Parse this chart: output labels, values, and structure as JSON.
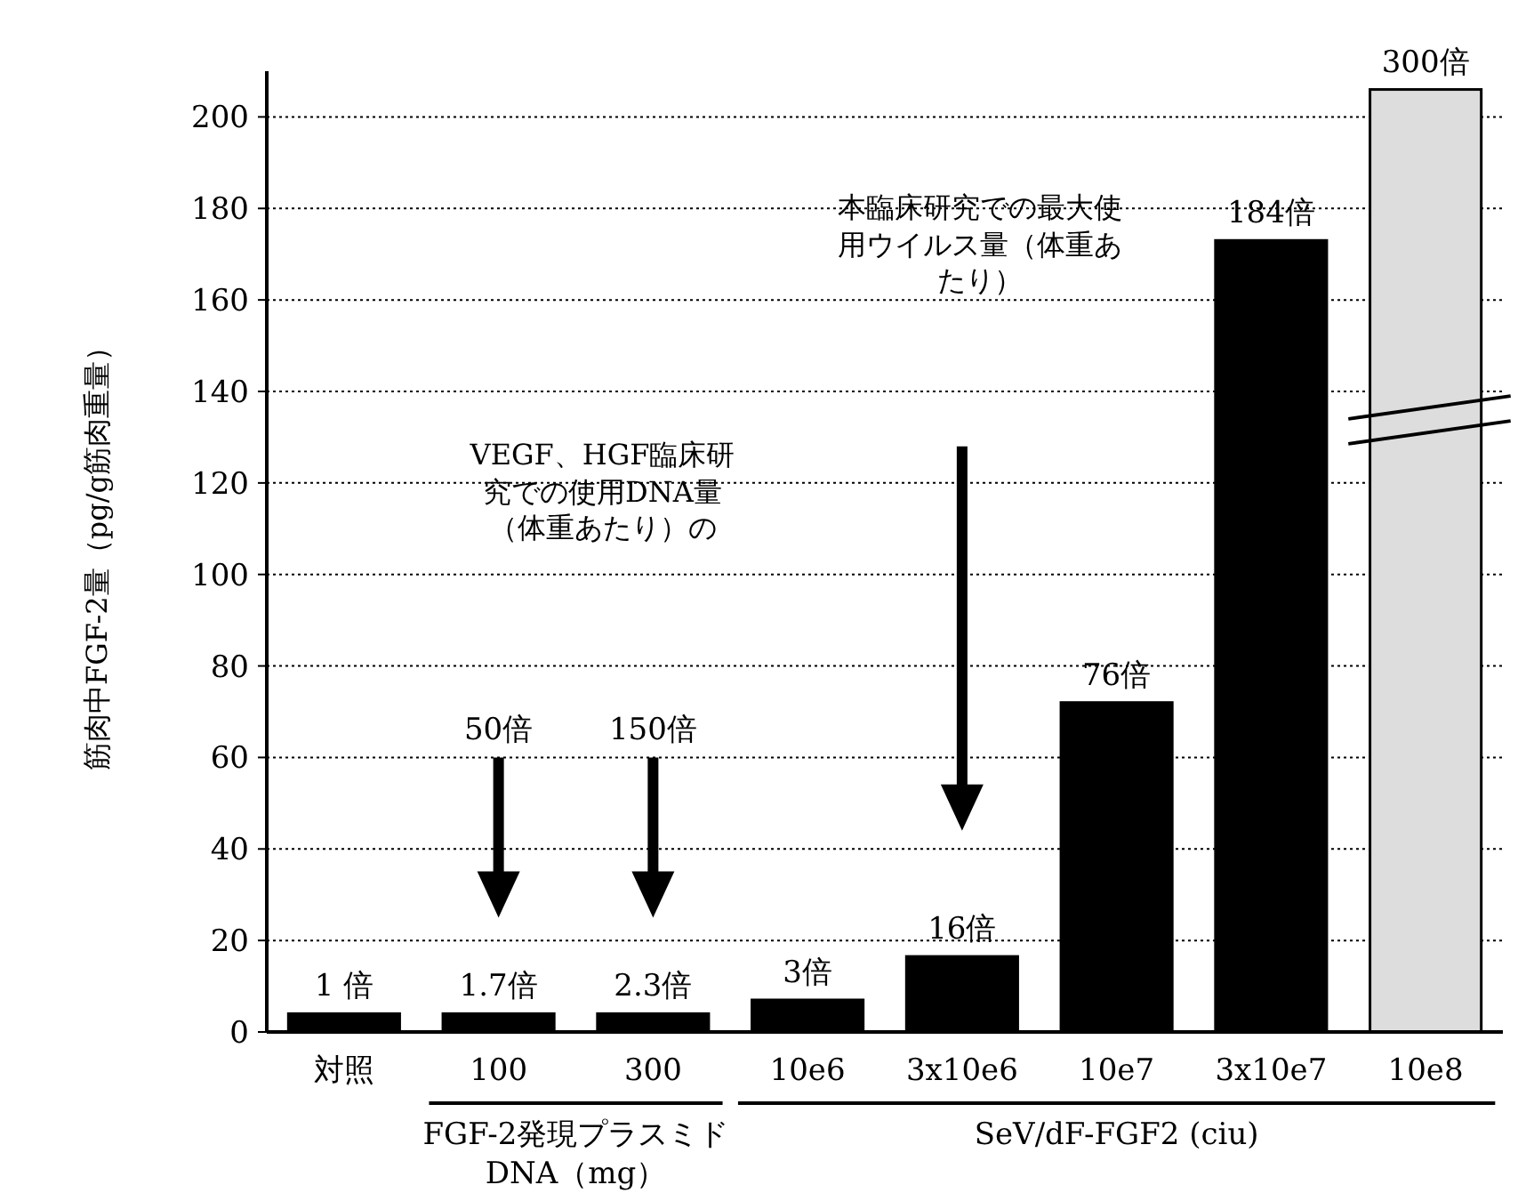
{
  "chart_data": {
    "type": "bar",
    "ylabel": "筋肉中FGF-2量（pg/g筋肉重量）",
    "categories": [
      "対照",
      "100",
      "300",
      "10e6",
      "3x10e6",
      "10e7",
      "3x10e7",
      "10e8"
    ],
    "values": [
      4,
      4,
      4,
      7,
      16.5,
      72,
      173,
      206
    ],
    "colors": [
      "#000000",
      "#000000",
      "#000000",
      "#000000",
      "#000000",
      "#000000",
      "#000000",
      "#dddddd"
    ],
    "ylim": [
      0,
      210
    ],
    "yticks": [
      0,
      20,
      40,
      60,
      80,
      100,
      120,
      140,
      160,
      180,
      200
    ],
    "grid": "y",
    "annotations": [
      "FGF-2発現プラスミドDNA（mg）",
      "SeV/dF-FGF2 (ciu)",
      "VEGF、HGF臨床研究での使用DNA量（体重あたり）の",
      "50倍",
      "150倍",
      "本臨床研究での最大使用ウイルス量（体重あたり）",
      {
        "text": "1 倍",
        "x": "対照",
        "y": 4
      },
      {
        "text": "1.7倍",
        "x": "100",
        "y": 4
      },
      {
        "text": "2.3倍",
        "x": "300",
        "y": 4
      },
      {
        "text": "3倍",
        "x": "10e6",
        "y": 7
      },
      {
        "text": "16倍",
        "x": "3x10e6",
        "y": 16.5
      },
      {
        "text": "76倍",
        "x": "10e7",
        "y": 72
      },
      {
        "text": "184倍",
        "x": "3x10e7",
        "y": 173
      },
      {
        "text": "300倍",
        "x": "10e8",
        "y": 206
      }
    ]
  }
}
